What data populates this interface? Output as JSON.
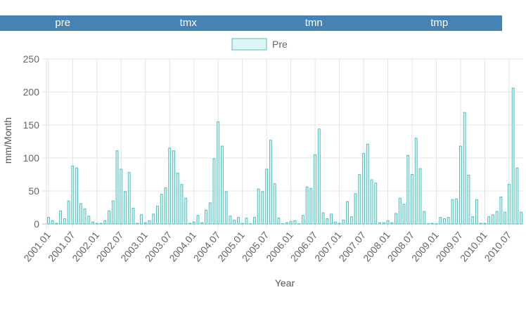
{
  "tabs": [
    {
      "label": "pre"
    },
    {
      "label": "tmx"
    },
    {
      "label": "tmn"
    },
    {
      "label": "tmp"
    }
  ],
  "chart_data": {
    "type": "bar",
    "ylabel": "mm/Month",
    "xlabel": "Year",
    "ylim": [
      0,
      250
    ],
    "yticks": [
      0,
      50,
      100,
      150,
      200,
      250
    ],
    "grid": true,
    "legend_position": "top",
    "tick_labels": [
      "2001.01",
      "2001.07",
      "2002.01",
      "2002.07",
      "2003.01",
      "2003.07",
      "2004.01",
      "2004.07",
      "2005.01",
      "2005.07",
      "2006.01",
      "2006.07",
      "2007.01",
      "2007.07",
      "2008.01",
      "2008.07",
      "2009.01",
      "2009.07",
      "2010.01",
      "2010.07"
    ],
    "series": [
      {
        "name": "Pre",
        "color": "#4bc0c0",
        "fill": "#dcf4f4",
        "values": [
          10,
          5,
          1,
          20,
          8,
          35,
          88,
          85,
          31,
          23,
          12,
          3,
          1,
          1,
          5,
          20,
          35,
          111,
          83,
          49,
          78,
          24,
          1,
          14,
          2,
          5,
          15,
          27,
          45,
          55,
          115,
          111,
          77,
          60,
          39,
          1,
          3,
          13,
          2,
          21,
          32,
          99,
          155,
          118,
          49,
          12,
          6,
          10,
          1,
          9,
          0,
          10,
          53,
          49,
          83,
          127,
          61,
          9,
          0,
          2,
          4,
          5,
          0,
          13,
          56,
          54,
          105,
          144,
          17,
          8,
          15,
          3,
          1,
          6,
          34,
          11,
          46,
          75,
          107,
          121,
          67,
          62,
          2,
          2,
          5,
          2,
          16,
          39,
          30,
          104,
          75,
          130,
          84,
          19,
          0,
          1,
          0,
          10,
          8,
          10,
          37,
          38,
          118,
          169,
          74,
          11,
          37,
          1,
          1,
          11,
          14,
          19,
          41,
          18,
          60,
          206,
          85,
          18
        ]
      }
    ]
  }
}
